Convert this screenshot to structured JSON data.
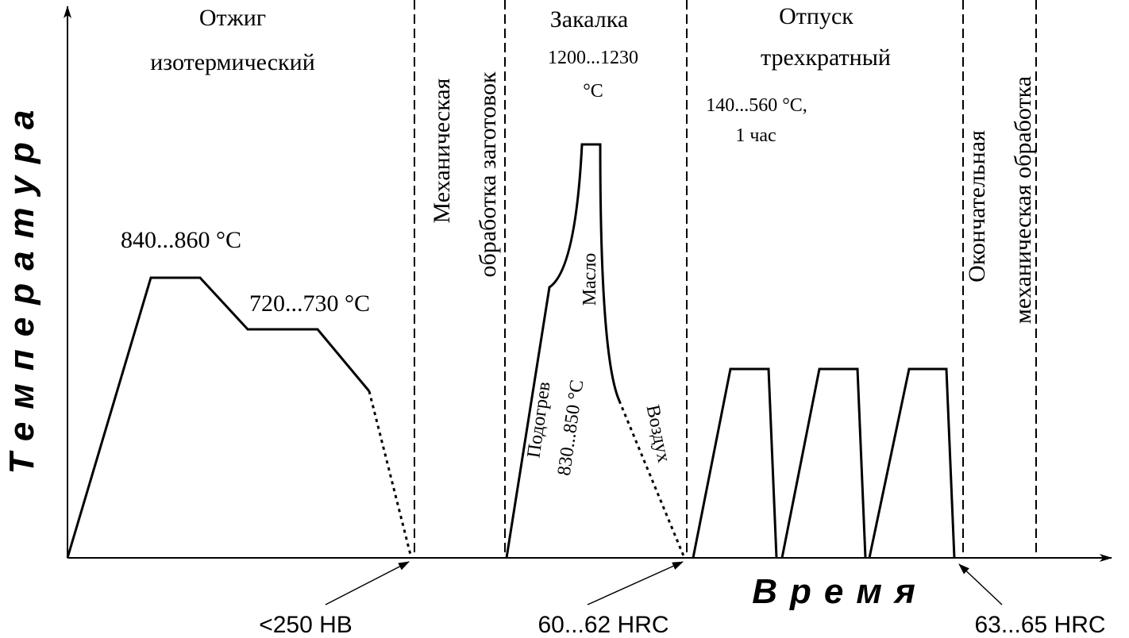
{
  "axes": {
    "y_label": "Температура",
    "x_label": "Время"
  },
  "stages": {
    "annealing": {
      "title": [
        "Отжиг",
        "изотермический"
      ],
      "temp_high": "840...860 °C",
      "temp_low": "720...730 °C",
      "hardness": "<250 HB"
    },
    "machining": {
      "title": [
        "Механическая",
        "обработка заготовок"
      ]
    },
    "quenching": {
      "title": "Закалка",
      "temp": [
        "1200...1230",
        "°C"
      ],
      "preheat": [
        "Подогрев",
        "830...850 °C"
      ],
      "oil": "Масло",
      "air": "Воздух",
      "hardness": "60...62 HRC"
    },
    "tempering": {
      "title": [
        "Отпуск",
        "трехкратный"
      ],
      "temp": [
        "140...560 °C,",
        "1 час"
      ],
      "hardness": "63...65 HRC"
    },
    "final_machining": {
      "title": [
        "Окончательная",
        "механическая обработка"
      ]
    }
  }
}
